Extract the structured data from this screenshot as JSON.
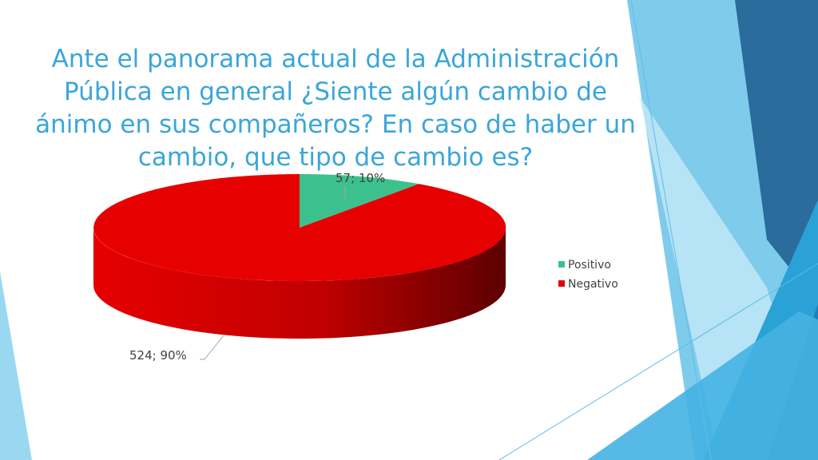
{
  "slide": {
    "title": "Ante el panorama actual de la Administración Pública en general ¿Siente algún cambio de ánimo en sus compañeros? En caso de haber un cambio, que tipo de cambio es?"
  },
  "colors": {
    "title": "#3aa6d9",
    "positivo": "#3cc18e",
    "negativo": "#e60000",
    "negativo_dark": "#5c0000",
    "deco_dark": "#2a6c9c",
    "deco_mid": "#2aa2d6",
    "deco_light": "#8fd0ef"
  },
  "chart_data": {
    "type": "pie",
    "style": "3d",
    "categories": [
      "Positivo",
      "Negativo"
    ],
    "values": [
      57,
      524
    ],
    "percentages": [
      10,
      90
    ],
    "data_labels": [
      "57; 10%",
      "524; 90%"
    ],
    "legend": [
      "Positivo",
      "Negativo"
    ],
    "legend_position": "right"
  }
}
